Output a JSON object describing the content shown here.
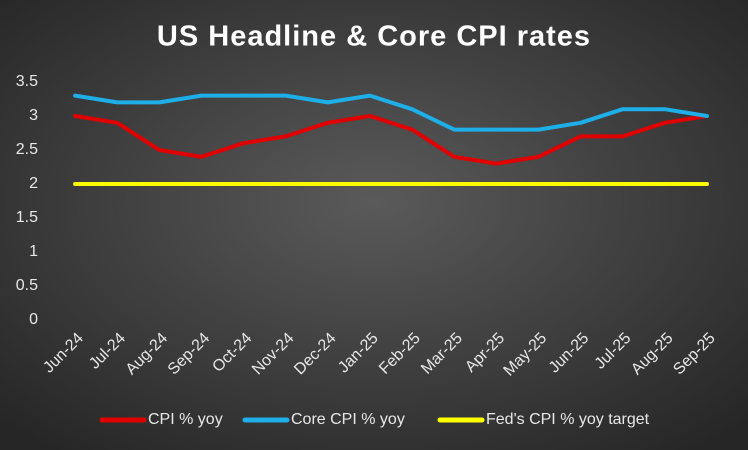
{
  "chart_data": {
    "type": "line",
    "title": "US Headline & Core CPI rates",
    "categories": [
      "Jun-24",
      "Jul-24",
      "Aug-24",
      "Sep-24",
      "Oct-24",
      "Nov-24",
      "Dec-24",
      "Jan-25",
      "Feb-25",
      "Mar-25",
      "Apr-25",
      "May-25",
      "Jun-25",
      "Jul-25",
      "Aug-25",
      "Sep-25"
    ],
    "series": [
      {
        "name": "CPI % yoy",
        "color": "#e00000",
        "values": [
          3.0,
          2.9,
          2.5,
          2.4,
          2.6,
          2.7,
          2.9,
          3.0,
          2.8,
          2.4,
          2.3,
          2.4,
          2.7,
          2.7,
          2.9,
          3.0
        ]
      },
      {
        "name": "Core CPI % yoy",
        "color": "#1eaee8",
        "values": [
          3.3,
          3.2,
          3.2,
          3.3,
          3.3,
          3.3,
          3.2,
          3.3,
          3.1,
          2.8,
          2.8,
          2.8,
          2.9,
          3.1,
          3.1,
          3.0
        ]
      },
      {
        "name": "Fed's CPI % yoy target",
        "color": "#ffff00",
        "values": [
          2,
          2,
          2,
          2,
          2,
          2,
          2,
          2,
          2,
          2,
          2,
          2,
          2,
          2,
          2,
          2
        ]
      }
    ],
    "ylim": [
      0,
      3.5
    ],
    "yticks": [
      0,
      0.5,
      1,
      1.5,
      2,
      2.5,
      3,
      3.5
    ],
    "grid": false,
    "legend": "bottom"
  }
}
